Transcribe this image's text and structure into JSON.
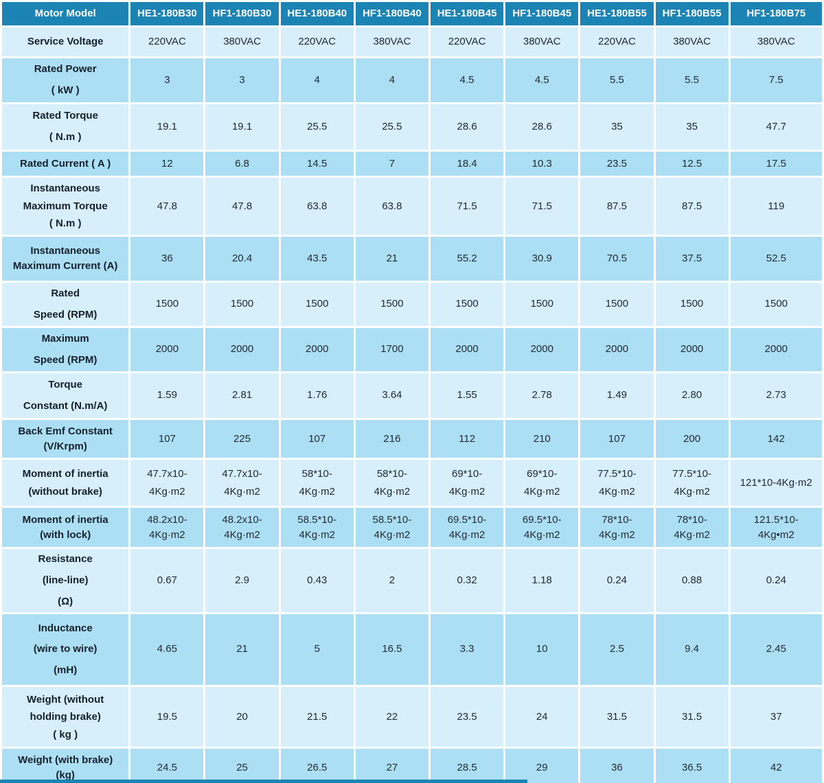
{
  "colors": {
    "header_bg": "#1C84B5",
    "header_text": "#FFFFFF",
    "row_light": "#D6EFFB",
    "row_dark": "#ACDFF4",
    "label_text": "#14202B",
    "value_text": "#222A33",
    "page_bg": "#FFFFFF"
  },
  "table": {
    "header": {
      "label": "Motor Model",
      "models": [
        "HE1-180B30",
        "HF1-180B30",
        "HE1-180B40",
        "HF1-180B40",
        "HE1-180B45",
        "HF1-180B45",
        "HE1-180B55",
        "HF1-180B55",
        "HF1-180B75"
      ]
    },
    "rows": [
      {
        "label": "Service Voltage",
        "values": [
          "220VAC",
          "380VAC",
          "220VAC",
          "380VAC",
          "220VAC",
          "380VAC",
          "220VAC",
          "380VAC",
          "380VAC"
        ]
      },
      {
        "label": "Rated Power\n( kW )",
        "values": [
          "3",
          "3",
          "4",
          "4",
          "4.5",
          "4.5",
          "5.5",
          "5.5",
          "7.5"
        ]
      },
      {
        "label": "Rated Torque\n( N.m )",
        "values": [
          "19.1",
          "19.1",
          "25.5",
          "25.5",
          "28.6",
          "28.6",
          "35",
          "35",
          "47.7"
        ]
      },
      {
        "label": "Rated Current ( A )",
        "values": [
          "12",
          "6.8",
          "14.5",
          "7",
          "18.4",
          "10.3",
          "23.5",
          "12.5",
          "17.5"
        ]
      },
      {
        "label": "Instantaneous\nMaximum Torque\n( N.m )",
        "values": [
          "47.8",
          "47.8",
          "63.8",
          "63.8",
          "71.5",
          "71.5",
          "87.5",
          "87.5",
          "119"
        ]
      },
      {
        "label": "Instantaneous\nMaximum Current (A)",
        "values": [
          "36",
          "20.4",
          "43.5",
          "21",
          "55.2",
          "30.9",
          "70.5",
          "37.5",
          "52.5"
        ]
      },
      {
        "label": "Rated\nSpeed (RPM)",
        "values": [
          "1500",
          "1500",
          "1500",
          "1500",
          "1500",
          "1500",
          "1500",
          "1500",
          "1500"
        ]
      },
      {
        "label": "Maximum\nSpeed (RPM)",
        "values": [
          "2000",
          "2000",
          "2000",
          "1700",
          "2000",
          "2000",
          "2000",
          "2000",
          "2000"
        ]
      },
      {
        "label": "Torque\nConstant (N.m/A)",
        "values": [
          "1.59",
          "2.81",
          "1.76",
          "3.64",
          "1.55",
          "2.78",
          "1.49",
          "2.80",
          "2.73"
        ]
      },
      {
        "label": "Back Emf Constant\n(V/Krpm)",
        "values": [
          "107",
          "225",
          "107",
          "216",
          "112",
          "210",
          "107",
          "200",
          "142"
        ]
      },
      {
        "label": "Moment of inertia\n(without brake)",
        "values": [
          "47.7x10-\n4Kg·m2",
          "47.7x10-\n4Kg·m2",
          "58*10-\n4Kg·m2",
          "58*10-\n4Kg·m2",
          "69*10-\n4Kg·m2",
          "69*10-\n4Kg·m2",
          "77.5*10-\n4Kg·m2",
          "77.5*10-\n4Kg·m2",
          "121*10-4Kg·m2"
        ]
      },
      {
        "label": "Moment of inertia\n(with lock)",
        "values": [
          "48.2x10-\n4Kg·m2",
          "48.2x10-\n4Kg·m2",
          "58.5*10-\n4Kg·m2",
          "58.5*10-\n4Kg·m2",
          "69.5*10-\n4Kg·m2",
          "69.5*10-\n4Kg·m2",
          "78*10-\n4Kg·m2",
          "78*10-\n4Kg·m2",
          "121.5*10-\n4Kg•m2"
        ]
      },
      {
        "label": "Resistance\n(line-line)\n(Ω)",
        "values": [
          "0.67",
          "2.9",
          "0.43",
          "2",
          "0.32",
          "1.18",
          "0.24",
          "0.88",
          "0.24"
        ]
      },
      {
        "label": "Inductance\n(wire to wire)\n(mH)",
        "values": [
          "4.65",
          "21",
          "5",
          "16.5",
          "3.3",
          "10",
          "2.5",
          "9.4",
          "2.45"
        ]
      },
      {
        "label": "Weight (without\nholding brake)\n( kg )",
        "values": [
          "19.5",
          "20",
          "21.5",
          "22",
          "23.5",
          "24",
          "31.5",
          "31.5",
          "37"
        ]
      },
      {
        "label": "Weight (with brake)\n(kg)",
        "values": [
          "24.5",
          "25",
          "26.5",
          "27",
          "28.5",
          "29",
          "36",
          "36.5",
          "42"
        ]
      }
    ]
  }
}
